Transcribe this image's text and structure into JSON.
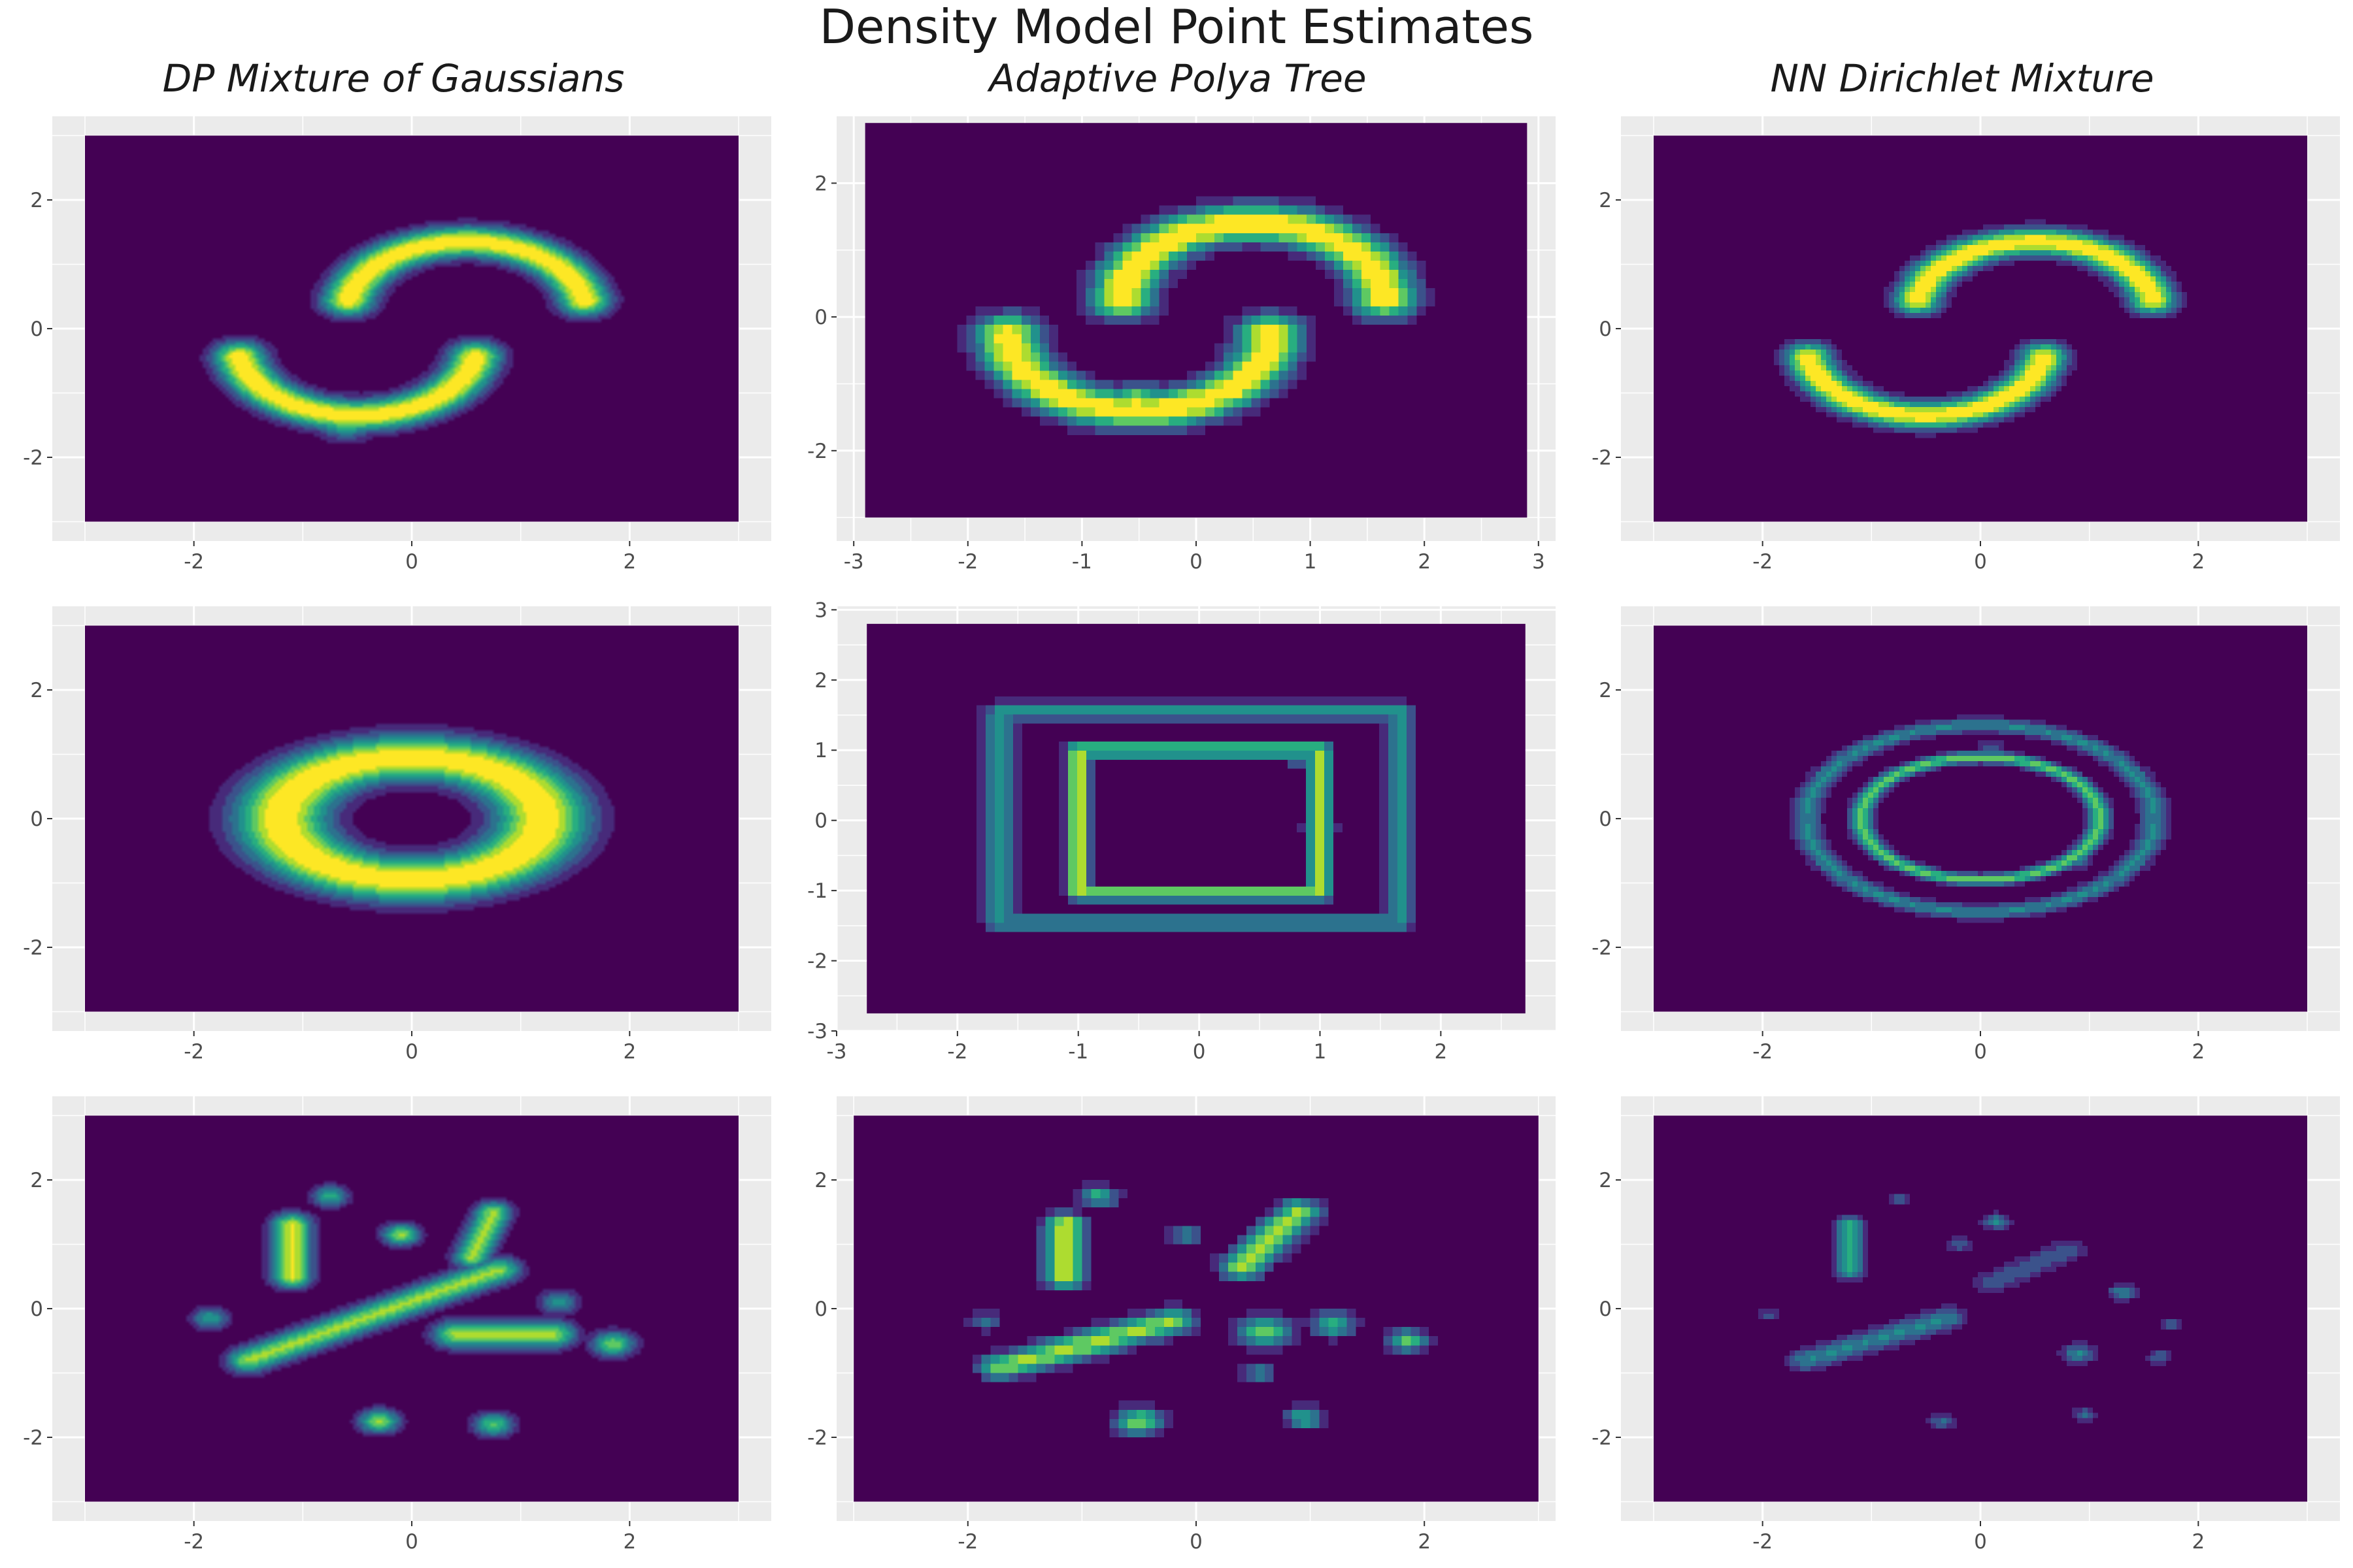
{
  "figure": {
    "title": "Density Model Point Estimates",
    "column_titles": [
      "DP Mixture of Gaussians",
      "Adaptive Polya Tree",
      "NN Dirichlet Mixture"
    ],
    "row_datasets": [
      "two moons",
      "concentric rings",
      "scattered clusters"
    ]
  },
  "colors": {
    "panel_background": "#ebebeb",
    "gridline": "#ffffff",
    "density_scale": [
      "#440154",
      "#472a7a",
      "#3b528b",
      "#2c728e",
      "#21918c",
      "#28ae80",
      "#5ec962",
      "#addc30",
      "#fde725"
    ]
  },
  "chart_data": [
    {
      "type": "heatmap",
      "model": "DP Mixture of Gaussians",
      "dataset": "two moons",
      "xlim": [
        -3.3,
        3.3
      ],
      "ylim": [
        -3.3,
        3.3
      ],
      "xticks": [
        -2,
        0,
        2
      ],
      "yticks": [
        -2,
        0,
        2
      ],
      "extent": [
        -3,
        3,
        -3,
        3
      ],
      "grid": true,
      "colormap": "viridis",
      "style": "smooth",
      "components": [
        {
          "shape": "arc",
          "cx": 0.5,
          "cy": 0.25,
          "r": 1.1,
          "from": 10,
          "to": 170,
          "sigma": 0.17,
          "weight": 1.0
        },
        {
          "shape": "arc",
          "cx": -0.5,
          "cy": -0.25,
          "r": 1.1,
          "from": 190,
          "to": 350,
          "sigma": 0.17,
          "weight": 1.0
        },
        {
          "shape": "point",
          "x": -0.6,
          "y": -1.38,
          "sigma": 0.2,
          "weight": 0.9
        },
        {
          "shape": "point",
          "x": -1.55,
          "y": -0.45,
          "sigma": 0.18,
          "weight": 0.5
        },
        {
          "shape": "point",
          "x": 1.55,
          "y": 0.45,
          "sigma": 0.18,
          "weight": 0.5
        },
        {
          "shape": "point",
          "x": -0.5,
          "y": 0.55,
          "sigma": 0.18,
          "weight": 0.35
        }
      ]
    },
    {
      "type": "heatmap",
      "model": "Adaptive Polya Tree",
      "dataset": "two moons",
      "xlim": [
        -3.15,
        3.15
      ],
      "ylim": [
        -3.35,
        3.0
      ],
      "xticks": [
        -3,
        -2,
        -1,
        0,
        1,
        2,
        3
      ],
      "yticks": [
        -2,
        0,
        2
      ],
      "extent": [
        -2.9,
        2.9,
        -3.0,
        2.9
      ],
      "grid": true,
      "colormap": "viridis",
      "style": "blocky",
      "components": [
        {
          "shape": "arc",
          "cx": 0.5,
          "cy": 0.25,
          "r": 1.15,
          "from": 0,
          "to": 180,
          "sigma": 0.2,
          "weight": 1.0
        },
        {
          "shape": "arc",
          "cx": -0.5,
          "cy": -0.25,
          "r": 1.15,
          "from": 180,
          "to": 360,
          "sigma": 0.2,
          "weight": 1.0
        },
        {
          "shape": "point",
          "x": -0.5,
          "y": -1.3,
          "sigma": 0.2,
          "weight": 0.9
        },
        {
          "shape": "point",
          "x": 1.6,
          "y": 0.3,
          "sigma": 0.2,
          "weight": 0.5
        },
        {
          "shape": "point",
          "x": -1.6,
          "y": -0.5,
          "sigma": 0.2,
          "weight": 0.5
        },
        {
          "shape": "point",
          "x": 0.3,
          "y": 1.45,
          "sigma": 0.2,
          "weight": 0.35
        }
      ]
    },
    {
      "type": "heatmap",
      "model": "NN Dirichlet Mixture",
      "dataset": "two moons",
      "xlim": [
        -3.3,
        3.3
      ],
      "ylim": [
        -3.3,
        3.3
      ],
      "xticks": [
        -2,
        0,
        2
      ],
      "yticks": [
        -2,
        0,
        2
      ],
      "extent": [
        -3,
        3,
        -3,
        3
      ],
      "grid": true,
      "colormap": "viridis",
      "style": "faceted",
      "components": [
        {
          "shape": "arc",
          "cx": 0.5,
          "cy": 0.25,
          "r": 1.1,
          "from": 10,
          "to": 170,
          "sigma": 0.15,
          "weight": 1.0
        },
        {
          "shape": "arc",
          "cx": -0.5,
          "cy": -0.25,
          "r": 1.1,
          "from": 190,
          "to": 350,
          "sigma": 0.15,
          "weight": 1.0
        },
        {
          "shape": "point",
          "x": 1.55,
          "y": 0.5,
          "sigma": 0.14,
          "weight": 0.35
        },
        {
          "shape": "point",
          "x": -0.5,
          "y": 0.8,
          "sigma": 0.14,
          "weight": 0.3
        },
        {
          "shape": "point",
          "x": -0.5,
          "y": -1.45,
          "sigma": 0.14,
          "weight": 0.3
        }
      ]
    },
    {
      "type": "heatmap",
      "model": "DP Mixture of Gaussians",
      "dataset": "concentric rings",
      "xlim": [
        -3.3,
        3.3
      ],
      "ylim": [
        -3.3,
        3.3
      ],
      "xticks": [
        -2,
        0,
        2
      ],
      "yticks": [
        -2,
        0,
        2
      ],
      "extent": [
        -3,
        3,
        -3,
        3
      ],
      "grid": true,
      "colormap": "viridis",
      "style": "smooth",
      "components": [
        {
          "shape": "ring",
          "cx": 0,
          "cy": 0,
          "rx": 1.2,
          "ry": 0.95,
          "sigma": 0.28,
          "weight": 1.0
        },
        {
          "shape": "point",
          "x": -1.1,
          "y": 0.35,
          "sigma": 0.3,
          "weight": 0.3
        },
        {
          "shape": "point",
          "x": 1.2,
          "y": 0.3,
          "sigma": 0.3,
          "weight": 0.3
        },
        {
          "shape": "point",
          "x": -0.8,
          "y": -0.75,
          "sigma": 0.3,
          "weight": 0.25
        },
        {
          "shape": "point",
          "x": 0.5,
          "y": -1.0,
          "sigma": 0.3,
          "weight": 0.25
        }
      ]
    },
    {
      "type": "heatmap",
      "model": "Adaptive Polya Tree",
      "dataset": "concentric rings",
      "xlim": [
        -3.0,
        2.95
      ],
      "ylim": [
        -3.0,
        3.05
      ],
      "xticks": [
        -3,
        -2,
        -1,
        0,
        1,
        2
      ],
      "yticks": [
        -3,
        -2,
        -1,
        0,
        1,
        2,
        3
      ],
      "extent": [
        -2.75,
        2.7,
        -2.75,
        2.8
      ],
      "grid": true,
      "colormap": "viridis",
      "style": "blocky",
      "components": [
        {
          "shape": "rect",
          "x0": -1.0,
          "x1": 1.0,
          "y0": -1.05,
          "y1": 1.0,
          "sigma": 0.07,
          "weight": 0.85
        },
        {
          "shape": "rect",
          "x0": -1.65,
          "x1": 1.65,
          "y0": -1.45,
          "y1": 1.55,
          "sigma": 0.09,
          "weight": 0.5
        },
        {
          "shape": "point",
          "x": -0.1,
          "y": -1.08,
          "sigma": 0.1,
          "weight": 0.5
        },
        {
          "shape": "point",
          "x": 1.0,
          "y": -0.1,
          "sigma": 0.1,
          "weight": 0.5
        },
        {
          "shape": "point",
          "x": -1.0,
          "y": 0.1,
          "sigma": 0.1,
          "weight": 0.35
        },
        {
          "shape": "point",
          "x": 0.85,
          "y": 0.85,
          "sigma": 0.1,
          "weight": 0.35
        }
      ]
    },
    {
      "type": "heatmap",
      "model": "NN Dirichlet Mixture",
      "dataset": "concentric rings",
      "xlim": [
        -3.3,
        3.3
      ],
      "ylim": [
        -3.3,
        3.3
      ],
      "xticks": [
        -2,
        0,
        2
      ],
      "yticks": [
        -2,
        0,
        2
      ],
      "extent": [
        -3,
        3,
        -3,
        3
      ],
      "grid": true,
      "colormap": "viridis",
      "style": "faceted",
      "components": [
        {
          "shape": "ring",
          "cx": 0,
          "cy": 0,
          "rx": 1.1,
          "ry": 0.95,
          "sigma": 0.07,
          "weight": 0.7
        },
        {
          "shape": "ring",
          "cx": 0,
          "cy": 0,
          "rx": 1.6,
          "ry": 1.45,
          "sigma": 0.09,
          "weight": 0.45
        },
        {
          "shape": "point",
          "x": 0.9,
          "y": -0.65,
          "sigma": 0.09,
          "weight": 0.4
        },
        {
          "shape": "point",
          "x": -1.05,
          "y": 0.2,
          "sigma": 0.09,
          "weight": 0.35
        },
        {
          "shape": "point",
          "x": 1.1,
          "y": 0.1,
          "sigma": 0.09,
          "weight": 0.35
        },
        {
          "shape": "point",
          "x": 1.55,
          "y": 0.5,
          "sigma": 0.09,
          "weight": 0.3
        },
        {
          "shape": "point",
          "x": 0.1,
          "y": 1.1,
          "sigma": 0.09,
          "weight": 0.3
        }
      ]
    },
    {
      "type": "heatmap",
      "model": "DP Mixture of Gaussians",
      "dataset": "scattered clusters",
      "xlim": [
        -3.3,
        3.3
      ],
      "ylim": [
        -3.3,
        3.3
      ],
      "xticks": [
        -2,
        0,
        2
      ],
      "yticks": [
        -2,
        0,
        2
      ],
      "extent": [
        -3,
        3,
        -3,
        3
      ],
      "grid": true,
      "colormap": "viridis",
      "style": "smooth",
      "components": [
        {
          "shape": "segment",
          "x0": -1.1,
          "y0": 0.5,
          "x1": -1.1,
          "y1": 1.3,
          "sigma": 0.13,
          "weight": 0.9
        },
        {
          "shape": "point",
          "x": -0.75,
          "y": 1.75,
          "sigma": 0.12,
          "weight": 0.6
        },
        {
          "shape": "point",
          "x": -0.1,
          "y": 1.15,
          "sigma": 0.12,
          "weight": 0.8
        },
        {
          "shape": "segment",
          "x0": -1.5,
          "y0": -0.8,
          "x1": 0.8,
          "y1": 0.6,
          "sigma": 0.14,
          "weight": 0.8
        },
        {
          "shape": "segment",
          "x0": 0.55,
          "y0": 0.8,
          "x1": 0.75,
          "y1": 1.5,
          "sigma": 0.12,
          "weight": 0.8
        },
        {
          "shape": "point",
          "x": -1.85,
          "y": -0.15,
          "sigma": 0.12,
          "weight": 0.55
        },
        {
          "shape": "segment",
          "x0": 0.4,
          "y0": -0.4,
          "x1": 1.3,
          "y1": -0.4,
          "sigma": 0.15,
          "weight": 0.8
        },
        {
          "shape": "point",
          "x": 1.35,
          "y": 0.1,
          "sigma": 0.13,
          "weight": 0.5
        },
        {
          "shape": "point",
          "x": 1.85,
          "y": -0.55,
          "sigma": 0.14,
          "weight": 0.75
        },
        {
          "shape": "point",
          "x": -0.3,
          "y": -1.75,
          "sigma": 0.13,
          "weight": 0.8
        },
        {
          "shape": "point",
          "x": 0.75,
          "y": -1.8,
          "sigma": 0.13,
          "weight": 0.7
        }
      ]
    },
    {
      "type": "heatmap",
      "model": "Adaptive Polya Tree",
      "dataset": "scattered clusters",
      "xlim": [
        -3.15,
        3.15
      ],
      "ylim": [
        -3.3,
        3.3
      ],
      "xticks": [
        -2,
        0,
        2
      ],
      "yticks": [
        -2,
        0,
        2
      ],
      "extent": [
        -3,
        3,
        -3,
        3
      ],
      "grid": true,
      "colormap": "viridis",
      "style": "blocky",
      "components": [
        {
          "shape": "segment",
          "x0": -1.15,
          "y0": 0.5,
          "x1": -1.15,
          "y1": 1.3,
          "sigma": 0.13,
          "weight": 0.9
        },
        {
          "shape": "point",
          "x": -0.85,
          "y": 1.75,
          "sigma": 0.12,
          "weight": 0.6
        },
        {
          "shape": "point",
          "x": -0.1,
          "y": 1.15,
          "sigma": 0.11,
          "weight": 0.45
        },
        {
          "shape": "segment",
          "x0": -1.7,
          "y0": -0.9,
          "x1": -0.2,
          "y1": -0.2,
          "sigma": 0.14,
          "weight": 0.8
        },
        {
          "shape": "segment",
          "x0": 0.4,
          "y0": 0.65,
          "x1": 0.9,
          "y1": 1.5,
          "sigma": 0.14,
          "weight": 0.8
        },
        {
          "shape": "point",
          "x": -1.85,
          "y": -0.2,
          "sigma": 0.1,
          "weight": 0.4
        },
        {
          "shape": "point",
          "x": 0.6,
          "y": -0.35,
          "sigma": 0.17,
          "weight": 0.75
        },
        {
          "shape": "point",
          "x": 1.2,
          "y": -0.25,
          "sigma": 0.14,
          "weight": 0.6
        },
        {
          "shape": "point",
          "x": 1.85,
          "y": -0.5,
          "sigma": 0.13,
          "weight": 0.7
        },
        {
          "shape": "point",
          "x": 0.55,
          "y": -1.0,
          "sigma": 0.1,
          "weight": 0.5
        },
        {
          "shape": "point",
          "x": -0.5,
          "y": -1.75,
          "sigma": 0.15,
          "weight": 0.75
        },
        {
          "shape": "point",
          "x": 0.95,
          "y": -1.7,
          "sigma": 0.12,
          "weight": 0.6
        }
      ]
    },
    {
      "type": "heatmap",
      "model": "NN Dirichlet Mixture",
      "dataset": "scattered clusters",
      "xlim": [
        -3.3,
        3.3
      ],
      "ylim": [
        -3.3,
        3.3
      ],
      "xticks": [
        -2,
        0,
        2
      ],
      "yticks": [
        -2,
        0,
        2
      ],
      "extent": [
        -3,
        3,
        -3,
        3
      ],
      "grid": true,
      "colormap": "viridis",
      "style": "faceted",
      "components": [
        {
          "shape": "segment",
          "x0": -1.2,
          "y0": 0.6,
          "x1": -1.2,
          "y1": 1.3,
          "sigma": 0.1,
          "weight": 0.6
        },
        {
          "shape": "point",
          "x": -0.75,
          "y": 1.7,
          "sigma": 0.08,
          "weight": 0.3
        },
        {
          "shape": "point",
          "x": 0.15,
          "y": 1.35,
          "sigma": 0.09,
          "weight": 0.45
        },
        {
          "shape": "point",
          "x": -0.2,
          "y": 1.0,
          "sigma": 0.09,
          "weight": 0.3
        },
        {
          "shape": "segment",
          "x0": -1.6,
          "y0": -0.8,
          "x1": -0.3,
          "y1": -0.15,
          "sigma": 0.12,
          "weight": 0.45
        },
        {
          "shape": "segment",
          "x0": 0.1,
          "y0": 0.4,
          "x1": 0.8,
          "y1": 0.9,
          "sigma": 0.12,
          "weight": 0.3
        },
        {
          "shape": "point",
          "x": -1.95,
          "y": -0.1,
          "sigma": 0.08,
          "weight": 0.25
        },
        {
          "shape": "point",
          "x": 0.9,
          "y": -0.7,
          "sigma": 0.11,
          "weight": 0.45
        },
        {
          "shape": "point",
          "x": 1.3,
          "y": 0.25,
          "sigma": 0.09,
          "weight": 0.45
        },
        {
          "shape": "point",
          "x": 1.75,
          "y": -0.25,
          "sigma": 0.08,
          "weight": 0.3
        },
        {
          "shape": "point",
          "x": 1.65,
          "y": -0.75,
          "sigma": 0.08,
          "weight": 0.35
        },
        {
          "shape": "point",
          "x": -0.35,
          "y": -1.75,
          "sigma": 0.09,
          "weight": 0.35
        },
        {
          "shape": "point",
          "x": 0.95,
          "y": -1.65,
          "sigma": 0.08,
          "weight": 0.35
        }
      ]
    }
  ]
}
